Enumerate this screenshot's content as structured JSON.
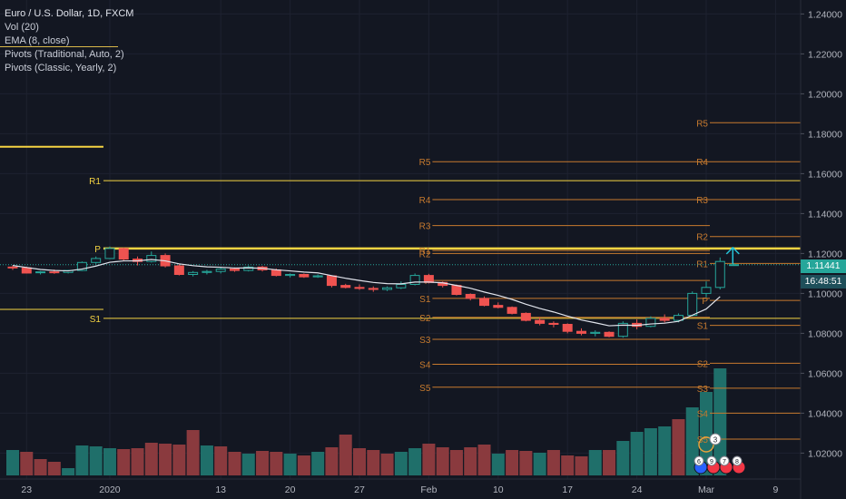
{
  "legend": {
    "title": "Euro / U.S. Dollar, 1D, FXCM",
    "vol": "Vol (20)",
    "ema": "EMA (8, close)",
    "pivots_trad": "Pivots (Traditional, Auto, 2)",
    "pivots_classic": "Pivots (Classic, Yearly, 2)"
  },
  "price_badge": "1.11441",
  "time_badge": "16:48:51",
  "colors": {
    "background": "#131722",
    "up": "#26a69a",
    "down": "#ef5350",
    "vol_up": "#1f6f6a",
    "vol_down": "#8a3a3e",
    "yearly_pivot": "#f5d442",
    "auto_pivot": "#c77a2e",
    "ema": "#e0e3eb"
  },
  "chart_data": {
    "type": "candlestick",
    "symbol": "Euro / U.S. Dollar, 1D, FXCM",
    "y_ticks": [
      "1.24000",
      "1.22000",
      "1.20000",
      "1.18000",
      "1.16000",
      "1.14000",
      "1.12000",
      "1.10000",
      "1.08000",
      "1.06000",
      "1.04000",
      "1.02000"
    ],
    "y_values": [
      1.24,
      1.22,
      1.2,
      1.18,
      1.16,
      1.14,
      1.12,
      1.1,
      1.08,
      1.06,
      1.04,
      1.02
    ],
    "ylim": [
      1.007,
      1.247
    ],
    "x_ticks": [
      {
        "label": "23",
        "bar": 1
      },
      {
        "label": "2020",
        "bar": 7
      },
      {
        "label": "13",
        "bar": 15
      },
      {
        "label": "20",
        "bar": 20
      },
      {
        "label": "27",
        "bar": 25
      },
      {
        "label": "Feb",
        "bar": 30
      },
      {
        "label": "10",
        "bar": 35
      },
      {
        "label": "17",
        "bar": 40
      },
      {
        "label": "24",
        "bar": 45
      },
      {
        "label": "Mar",
        "bar": 50
      },
      {
        "label": "9",
        "bar": 55
      }
    ],
    "candles": [
      {
        "o": 1.1132,
        "h": 1.114,
        "l": 1.1118,
        "c": 1.1128
      },
      {
        "o": 1.1128,
        "h": 1.1134,
        "l": 1.11,
        "c": 1.1102
      },
      {
        "o": 1.1104,
        "h": 1.1112,
        "l": 1.1095,
        "c": 1.1108
      },
      {
        "o": 1.1108,
        "h": 1.112,
        "l": 1.1098,
        "c": 1.1105
      },
      {
        "o": 1.1105,
        "h": 1.1118,
        "l": 1.11,
        "c": 1.1115
      },
      {
        "o": 1.1115,
        "h": 1.116,
        "l": 1.1112,
        "c": 1.1155
      },
      {
        "o": 1.1155,
        "h": 1.1185,
        "l": 1.1148,
        "c": 1.1175
      },
      {
        "o": 1.1175,
        "h": 1.1235,
        "l": 1.1172,
        "c": 1.1225
      },
      {
        "o": 1.1225,
        "h": 1.123,
        "l": 1.1165,
        "c": 1.1172
      },
      {
        "o": 1.1172,
        "h": 1.1185,
        "l": 1.114,
        "c": 1.116
      },
      {
        "o": 1.116,
        "h": 1.121,
        "l": 1.1155,
        "c": 1.119
      },
      {
        "o": 1.119,
        "h": 1.12,
        "l": 1.113,
        "c": 1.1138
      },
      {
        "o": 1.1138,
        "h": 1.1145,
        "l": 1.109,
        "c": 1.1095
      },
      {
        "o": 1.1095,
        "h": 1.1112,
        "l": 1.1085,
        "c": 1.1105
      },
      {
        "o": 1.1105,
        "h": 1.1118,
        "l": 1.1095,
        "c": 1.111
      },
      {
        "o": 1.111,
        "h": 1.113,
        "l": 1.11,
        "c": 1.1122
      },
      {
        "o": 1.1122,
        "h": 1.113,
        "l": 1.1108,
        "c": 1.1115
      },
      {
        "o": 1.1115,
        "h": 1.114,
        "l": 1.111,
        "c": 1.1132
      },
      {
        "o": 1.1132,
        "h": 1.1138,
        "l": 1.111,
        "c": 1.1118
      },
      {
        "o": 1.1118,
        "h": 1.1125,
        "l": 1.1085,
        "c": 1.109
      },
      {
        "o": 1.109,
        "h": 1.11,
        "l": 1.108,
        "c": 1.1095
      },
      {
        "o": 1.1095,
        "h": 1.11,
        "l": 1.1078,
        "c": 1.1083
      },
      {
        "o": 1.1083,
        "h": 1.1095,
        "l": 1.1078,
        "c": 1.1088
      },
      {
        "o": 1.1088,
        "h": 1.109,
        "l": 1.103,
        "c": 1.104
      },
      {
        "o": 1.104,
        "h": 1.1048,
        "l": 1.1025,
        "c": 1.103
      },
      {
        "o": 1.103,
        "h": 1.1045,
        "l": 1.1018,
        "c": 1.1025
      },
      {
        "o": 1.1025,
        "h": 1.1035,
        "l": 1.1008,
        "c": 1.102
      },
      {
        "o": 1.102,
        "h": 1.1035,
        "l": 1.1012,
        "c": 1.1028
      },
      {
        "o": 1.1028,
        "h": 1.106,
        "l": 1.1022,
        "c": 1.1045
      },
      {
        "o": 1.1045,
        "h": 1.11,
        "l": 1.104,
        "c": 1.109
      },
      {
        "o": 1.109,
        "h": 1.1098,
        "l": 1.105,
        "c": 1.1055
      },
      {
        "o": 1.1055,
        "h": 1.106,
        "l": 1.103,
        "c": 1.104
      },
      {
        "o": 1.104,
        "h": 1.1045,
        "l": 1.099,
        "c": 1.0995
      },
      {
        "o": 1.0995,
        "h": 1.1,
        "l": 1.0965,
        "c": 1.0975
      },
      {
        "o": 1.0975,
        "h": 1.0985,
        "l": 1.0935,
        "c": 1.094
      },
      {
        "o": 1.094,
        "h": 1.0955,
        "l": 1.0925,
        "c": 1.093
      },
      {
        "o": 1.093,
        "h": 1.0935,
        "l": 1.0895,
        "c": 1.09
      },
      {
        "o": 1.09,
        "h": 1.0905,
        "l": 1.086,
        "c": 1.0865
      },
      {
        "o": 1.0865,
        "h": 1.088,
        "l": 1.084,
        "c": 1.085
      },
      {
        "o": 1.085,
        "h": 1.086,
        "l": 1.083,
        "c": 1.0845
      },
      {
        "o": 1.0845,
        "h": 1.085,
        "l": 1.08,
        "c": 1.081
      },
      {
        "o": 1.081,
        "h": 1.0825,
        "l": 1.079,
        "c": 1.08
      },
      {
        "o": 1.08,
        "h": 1.0815,
        "l": 1.0785,
        "c": 1.0805
      },
      {
        "o": 1.0805,
        "h": 1.081,
        "l": 1.078,
        "c": 1.0785
      },
      {
        "o": 1.0785,
        "h": 1.086,
        "l": 1.0778,
        "c": 1.085
      },
      {
        "o": 1.085,
        "h": 1.087,
        "l": 1.082,
        "c": 1.0835
      },
      {
        "o": 1.0835,
        "h": 1.0885,
        "l": 1.083,
        "c": 1.0875
      },
      {
        "o": 1.0875,
        "h": 1.0895,
        "l": 1.0855,
        "c": 1.0865
      },
      {
        "o": 1.0865,
        "h": 1.09,
        "l": 1.0855,
        "c": 1.089
      },
      {
        "o": 1.089,
        "h": 1.101,
        "l": 1.0885,
        "c": 1.1
      },
      {
        "o": 1.1,
        "h": 1.106,
        "l": 1.098,
        "c": 1.103
      },
      {
        "o": 1.103,
        "h": 1.118,
        "l": 1.102,
        "c": 1.116
      },
      {
        "o": 1.1144,
        "h": 1.115,
        "l": 1.1138,
        "c": 1.1144
      }
    ],
    "volume": [
      {
        "v": 28,
        "up": true
      },
      {
        "v": 26,
        "up": false
      },
      {
        "v": 18,
        "up": false
      },
      {
        "v": 15,
        "up": false
      },
      {
        "v": 8,
        "up": true
      },
      {
        "v": 33,
        "up": true
      },
      {
        "v": 32,
        "up": true
      },
      {
        "v": 30,
        "up": true
      },
      {
        "v": 29,
        "up": false
      },
      {
        "v": 30,
        "up": false
      },
      {
        "v": 36,
        "up": false
      },
      {
        "v": 35,
        "up": false
      },
      {
        "v": 34,
        "up": false
      },
      {
        "v": 50,
        "up": false
      },
      {
        "v": 33,
        "up": true
      },
      {
        "v": 32,
        "up": false
      },
      {
        "v": 26,
        "up": false
      },
      {
        "v": 24,
        "up": true
      },
      {
        "v": 27,
        "up": false
      },
      {
        "v": 26,
        "up": false
      },
      {
        "v": 24,
        "up": true
      },
      {
        "v": 22,
        "up": false
      },
      {
        "v": 26,
        "up": true
      },
      {
        "v": 31,
        "up": false
      },
      {
        "v": 45,
        "up": false
      },
      {
        "v": 30,
        "up": false
      },
      {
        "v": 28,
        "up": false
      },
      {
        "v": 24,
        "up": false
      },
      {
        "v": 26,
        "up": true
      },
      {
        "v": 30,
        "up": true
      },
      {
        "v": 35,
        "up": false
      },
      {
        "v": 31,
        "up": false
      },
      {
        "v": 28,
        "up": false
      },
      {
        "v": 31,
        "up": false
      },
      {
        "v": 34,
        "up": false
      },
      {
        "v": 24,
        "up": true
      },
      {
        "v": 28,
        "up": false
      },
      {
        "v": 27,
        "up": false
      },
      {
        "v": 25,
        "up": true
      },
      {
        "v": 28,
        "up": false
      },
      {
        "v": 22,
        "up": false
      },
      {
        "v": 21,
        "up": false
      },
      {
        "v": 28,
        "up": true
      },
      {
        "v": 28,
        "up": false
      },
      {
        "v": 38,
        "up": true
      },
      {
        "v": 48,
        "up": true
      },
      {
        "v": 52,
        "up": true
      },
      {
        "v": 54,
        "up": true
      },
      {
        "v": 62,
        "up": false
      },
      {
        "v": 75,
        "up": true
      },
      {
        "v": 92,
        "up": true
      },
      {
        "v": 118,
        "up": true
      },
      {
        "v": 0,
        "up": true
      }
    ],
    "ema": [
      1.114,
      1.113,
      1.112,
      1.1115,
      1.1113,
      1.1122,
      1.1137,
      1.1156,
      1.1163,
      1.1163,
      1.117,
      1.1163,
      1.1148,
      1.1139,
      1.1133,
      1.1131,
      1.1127,
      1.1128,
      1.1126,
      1.1118,
      1.1113,
      1.1107,
      1.1103,
      1.1089,
      1.1076,
      1.1065,
      1.1055,
      1.1049,
      1.1048,
      1.1057,
      1.1057,
      1.1053,
      1.104,
      1.1026,
      1.1007,
      1.099,
      1.097,
      1.0946,
      1.0925,
      1.0907,
      1.0886,
      1.0867,
      1.0853,
      1.0838,
      1.0841,
      1.084,
      1.0847,
      1.0851,
      1.086,
      1.0891,
      1.0922,
      1.0984
    ],
    "yearly_pivots": [
      {
        "label": "R1",
        "value": 1.1565
      },
      {
        "label": "P",
        "value": 1.1225
      },
      {
        "label": "S1",
        "value": 1.0875
      }
    ],
    "yearly_prev_levels": [
      1.1735,
      1.092
    ],
    "auto_pivots_feb": [
      {
        "label": "R5",
        "value": 1.166
      },
      {
        "label": "R4",
        "value": 1.147
      },
      {
        "label": "R3",
        "value": 1.134
      },
      {
        "label": "R2",
        "value": 1.12
      },
      {
        "label": "R1",
        "value": 1.1215
      },
      {
        "label": "P",
        "value": 1.1065
      },
      {
        "label": "S1",
        "value": 1.0975
      },
      {
        "label": "S2",
        "value": 1.088
      },
      {
        "label": "S3",
        "value": 1.077
      },
      {
        "label": "S4",
        "value": 1.0645
      },
      {
        "label": "S5",
        "value": 1.053
      }
    ],
    "auto_pivots_mar": [
      {
        "label": "R5",
        "value": 1.1855
      },
      {
        "label": "R4",
        "value": 1.166
      },
      {
        "label": "R3",
        "value": 1.147
      },
      {
        "label": "R2",
        "value": 1.1285
      },
      {
        "label": "R1",
        "value": 1.115
      },
      {
        "label": "P",
        "value": 1.0965
      },
      {
        "label": "S1",
        "value": 1.084
      },
      {
        "label": "S2",
        "value": 1.065
      },
      {
        "label": "S3",
        "value": 1.0525
      },
      {
        "label": "S4",
        "value": 1.04
      },
      {
        "label": "S5",
        "value": 1.027
      }
    ],
    "events_top": [
      "3"
    ],
    "events_bottom": [
      "6",
      "9",
      "7",
      "8"
    ]
  }
}
